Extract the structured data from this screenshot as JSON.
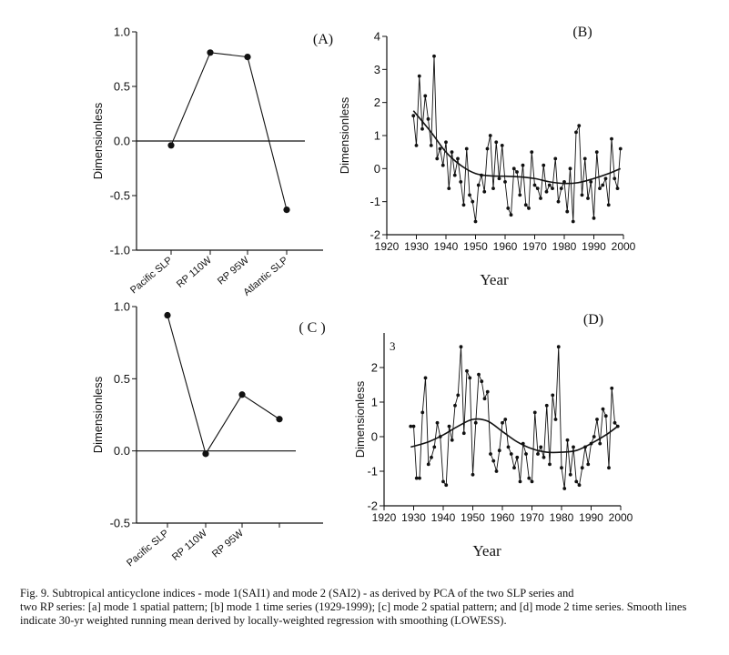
{
  "chart_data": [
    {
      "id": "A",
      "type": "line",
      "panel_label": "(A)",
      "ylabel": "Dimensionless",
      "xlabel": "",
      "ylim": [
        -1.0,
        1.0
      ],
      "yticks": [
        "1.0",
        "0.5",
        "0.0",
        "-0.5",
        "-1.0"
      ],
      "ytick_values": [
        1.0,
        0.5,
        0.0,
        -0.5,
        -1.0
      ],
      "categories": [
        "Pacific SLP",
        "RP 110W",
        "RP 95W",
        "Atlantic SLP"
      ],
      "values": [
        -0.04,
        0.81,
        0.77,
        -0.63
      ],
      "zero_line": true
    },
    {
      "id": "B",
      "type": "line",
      "panel_label": "(B)",
      "ylabel": "Dimensionless",
      "xlabel": "Year",
      "xlim": [
        1920,
        2000
      ],
      "ylim": [
        -2,
        4
      ],
      "xticks": [
        "1920",
        "1930",
        "1940",
        "1950",
        "1960",
        "1970",
        "1980",
        "1990",
        "2000"
      ],
      "xtick_values": [
        1920,
        1930,
        1940,
        1950,
        1960,
        1970,
        1980,
        1990,
        2000
      ],
      "yticks": [
        "4",
        "3",
        "2",
        "1",
        "0",
        "-1",
        "-2"
      ],
      "ytick_values": [
        4,
        3,
        2,
        1,
        0,
        -1,
        -2
      ],
      "series": [
        {
          "name": "mode 1 time series",
          "x": [
            1929,
            1930,
            1931,
            1932,
            1933,
            1934,
            1935,
            1936,
            1937,
            1938,
            1939,
            1940,
            1941,
            1942,
            1943,
            1944,
            1945,
            1946,
            1947,
            1948,
            1949,
            1950,
            1951,
            1952,
            1953,
            1954,
            1955,
            1956,
            1957,
            1958,
            1959,
            1960,
            1961,
            1962,
            1963,
            1964,
            1965,
            1966,
            1967,
            1968,
            1969,
            1970,
            1971,
            1972,
            1973,
            1974,
            1975,
            1976,
            1977,
            1978,
            1979,
            1980,
            1981,
            1982,
            1983,
            1984,
            1985,
            1986,
            1987,
            1988,
            1989,
            1990,
            1991,
            1992,
            1993,
            1994,
            1995,
            1996,
            1997,
            1998,
            1999
          ],
          "values": [
            1.6,
            0.7,
            2.8,
            1.2,
            2.2,
            1.5,
            0.7,
            3.4,
            0.3,
            0.6,
            0.1,
            0.8,
            -0.6,
            0.5,
            -0.2,
            0.3,
            -0.4,
            -1.1,
            0.6,
            -0.8,
            -1.0,
            -1.6,
            -0.5,
            -0.2,
            -0.7,
            0.6,
            1.0,
            -0.6,
            0.8,
            -0.3,
            0.7,
            -0.4,
            -1.2,
            -1.4,
            0.0,
            -0.1,
            -0.8,
            0.1,
            -1.1,
            -1.2,
            0.5,
            -0.5,
            -0.6,
            -0.9,
            0.1,
            -0.7,
            -0.5,
            -0.6,
            0.3,
            -1.0,
            -0.6,
            -0.4,
            -1.3,
            0.0,
            -1.6,
            1.1,
            1.3,
            -0.8,
            0.3,
            -0.9,
            -0.4,
            -1.5,
            0.5,
            -0.6,
            -0.5,
            -0.3,
            -1.1,
            0.9,
            -0.3,
            -0.6,
            0.6
          ]
        },
        {
          "name": "LOWESS smooth",
          "x": [
            1929,
            1935,
            1940,
            1945,
            1950,
            1955,
            1960,
            1965,
            1970,
            1975,
            1980,
            1985,
            1990,
            1995,
            1999
          ],
          "values": [
            1.75,
            1.1,
            0.5,
            0.1,
            -0.15,
            -0.22,
            -0.23,
            -0.25,
            -0.3,
            -0.4,
            -0.45,
            -0.42,
            -0.3,
            -0.15,
            0.0
          ]
        }
      ]
    },
    {
      "id": "C",
      "type": "line",
      "panel_label": "( C )",
      "ylabel": "Dimensionless",
      "xlabel": "",
      "ylim": [
        -0.5,
        1.0
      ],
      "yticks": [
        "1.0",
        "0.5",
        "0.0",
        "-0.5"
      ],
      "ytick_values": [
        1.0,
        0.5,
        0.0,
        -0.5
      ],
      "categories": [
        "Pacific SLP",
        "RP 110W",
        "RP 95W",
        ""
      ],
      "values": [
        0.94,
        -0.02,
        0.39,
        0.22
      ],
      "zero_line": true
    },
    {
      "id": "D",
      "type": "line",
      "panel_label": "(D)",
      "ylabel": "Dimensionless",
      "xlabel": "Year",
      "annotation": "3",
      "xlim": [
        1920,
        2000
      ],
      "ylim": [
        -2,
        3
      ],
      "xticks": [
        "1920",
        "1930",
        "1940",
        "1950",
        "1960",
        "1970",
        "1980",
        "1990",
        "2000"
      ],
      "xtick_values": [
        1920,
        1930,
        1940,
        1950,
        1960,
        1970,
        1980,
        1990,
        2000
      ],
      "yticks": [
        "2",
        "1",
        "0",
        "-1",
        "-2"
      ],
      "ytick_values": [
        2,
        1,
        0,
        -1,
        -2
      ],
      "series": [
        {
          "name": "mode 2 time series",
          "x": [
            1929,
            1930,
            1931,
            1932,
            1933,
            1934,
            1935,
            1936,
            1937,
            1938,
            1939,
            1940,
            1941,
            1942,
            1943,
            1944,
            1945,
            1946,
            1947,
            1948,
            1949,
            1950,
            1951,
            1952,
            1953,
            1954,
            1955,
            1956,
            1957,
            1958,
            1959,
            1960,
            1961,
            1962,
            1963,
            1964,
            1965,
            1966,
            1967,
            1968,
            1969,
            1970,
            1971,
            1972,
            1973,
            1974,
            1975,
            1976,
            1977,
            1978,
            1979,
            1980,
            1981,
            1982,
            1983,
            1984,
            1985,
            1986,
            1987,
            1988,
            1989,
            1990,
            1991,
            1992,
            1993,
            1994,
            1995,
            1996,
            1997,
            1998,
            1999
          ],
          "values": [
            0.3,
            0.3,
            -1.2,
            -1.2,
            0.7,
            1.7,
            -0.8,
            -0.6,
            -0.3,
            0.4,
            0.0,
            -1.3,
            -1.4,
            0.3,
            -0.1,
            0.9,
            1.2,
            2.6,
            0.1,
            1.9,
            1.7,
            -1.1,
            0.4,
            1.8,
            1.6,
            1.1,
            1.3,
            -0.5,
            -0.7,
            -1.0,
            -0.4,
            0.4,
            0.5,
            -0.3,
            -0.5,
            -0.9,
            -0.6,
            -1.3,
            -0.2,
            -0.5,
            -1.2,
            -1.3,
            0.7,
            -0.5,
            -0.3,
            -0.6,
            0.9,
            -0.8,
            1.2,
            0.5,
            2.6,
            -0.9,
            -1.5,
            -0.1,
            -1.1,
            -0.3,
            -1.3,
            -1.4,
            -0.9,
            -0.3,
            -0.8,
            -0.2,
            0.0,
            0.5,
            -0.2,
            0.8,
            0.6,
            -0.9,
            1.4,
            0.4,
            0.3
          ]
        },
        {
          "name": "LOWESS smooth",
          "x": [
            1929,
            1935,
            1940,
            1945,
            1950,
            1955,
            1960,
            1965,
            1970,
            1975,
            1980,
            1985,
            1990,
            1995,
            1999
          ],
          "values": [
            -0.3,
            -0.15,
            0.05,
            0.3,
            0.5,
            0.45,
            0.15,
            -0.15,
            -0.35,
            -0.45,
            -0.45,
            -0.4,
            -0.2,
            0.05,
            0.3
          ]
        }
      ]
    }
  ],
  "caption": {
    "head": "Fig. 9. Subtropical anticyclone indices - mode 1(SAI1) and mode 2 (SAI2) - as derived by PCA of the two SLP series and",
    "body": "two RP series: [a] mode 1 spatial pattern; [b] mode 1 time series (1929-1999); [c] mode 2 spatial pattern; and [d] mode 2 time series. Smooth lines indicate 30-yr weighted running mean derived by locally-weighted regression with smoothing (LOWESS)."
  }
}
